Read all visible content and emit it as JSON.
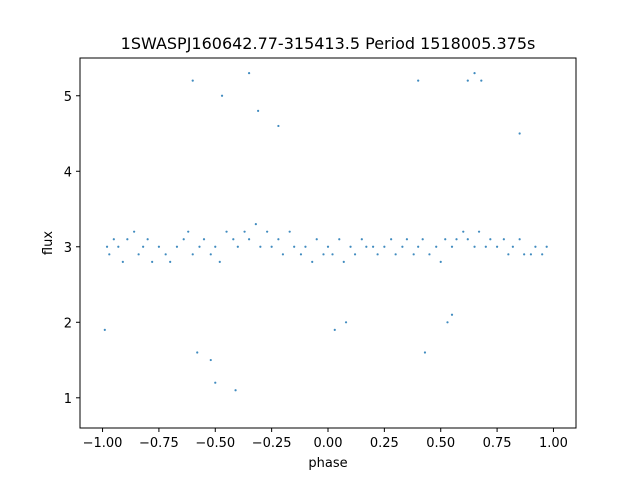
{
  "chart_data": {
    "type": "scatter",
    "title": "1SWASPJ160642.77-315413.5 Period 1518005.375s",
    "xlabel": "phase",
    "ylabel": "flux",
    "xlim": [
      -1.1,
      1.1
    ],
    "ylim": [
      0.6,
      5.5
    ],
    "x_ticks": [
      -1.0,
      -0.75,
      -0.5,
      -0.25,
      0.0,
      0.25,
      0.5,
      0.75,
      1.0
    ],
    "x_tick_labels": [
      "−1.00",
      "−0.75",
      "−0.50",
      "−0.25",
      "0.00",
      "0.25",
      "0.50",
      "0.75",
      "1.00"
    ],
    "y_ticks": [
      1,
      2,
      3,
      4,
      5
    ],
    "y_tick_labels": [
      "1",
      "2",
      "3",
      "4",
      "5"
    ],
    "grid": false,
    "marker_color": "#1f77b4",
    "series": [
      {
        "x": [
          -0.98,
          -0.97,
          -0.95,
          -0.93,
          -0.91,
          -0.89,
          -0.86,
          -0.84,
          -0.82,
          -0.8,
          -0.78,
          -0.75,
          -0.72,
          -0.7,
          -0.67,
          -0.64,
          -0.62,
          -0.6,
          -0.57,
          -0.55,
          -0.52,
          -0.5,
          -0.48,
          -0.45,
          -0.42,
          -0.4,
          -0.37,
          -0.35,
          -0.32,
          -0.3,
          -0.27,
          -0.25,
          -0.22,
          -0.2,
          -0.17,
          -0.15,
          -0.12,
          -0.1,
          -0.07,
          -0.05,
          -0.02,
          0.0,
          0.02,
          0.05,
          0.07,
          0.1,
          0.12,
          0.15,
          0.17,
          0.2,
          0.22,
          0.25,
          0.28,
          0.3,
          0.33,
          0.35,
          0.38,
          0.4,
          0.42,
          0.45,
          0.48,
          0.5,
          0.52,
          0.55,
          0.57,
          0.6,
          0.62,
          0.65,
          0.67,
          0.7,
          0.72,
          0.75,
          0.78,
          0.8,
          0.82,
          0.85,
          0.87,
          0.9,
          0.92,
          0.95,
          0.97,
          -0.99,
          -0.6,
          -0.47,
          -0.35,
          -0.31,
          -0.22,
          0.4,
          0.53,
          0.62,
          0.65,
          0.68,
          0.85,
          -0.58,
          0.43,
          -0.52,
          -0.5,
          0.03,
          0.55,
          -0.41,
          0.08
        ],
        "y": [
          3.0,
          2.9,
          3.1,
          3.0,
          2.8,
          3.1,
          3.2,
          2.9,
          3.0,
          3.1,
          2.8,
          3.0,
          2.9,
          2.8,
          3.0,
          3.1,
          3.2,
          2.9,
          3.0,
          3.1,
          2.9,
          3.0,
          2.8,
          3.2,
          3.1,
          3.0,
          3.2,
          3.1,
          3.3,
          3.0,
          3.2,
          3.0,
          3.1,
          2.9,
          3.2,
          3.0,
          2.9,
          3.0,
          2.8,
          3.1,
          2.9,
          3.0,
          2.9,
          3.1,
          2.8,
          3.0,
          2.9,
          3.1,
          3.0,
          3.0,
          2.9,
          3.0,
          3.1,
          2.9,
          3.0,
          3.1,
          2.9,
          3.0,
          3.1,
          2.9,
          3.0,
          2.8,
          3.1,
          3.0,
          3.1,
          3.2,
          3.1,
          3.0,
          3.2,
          3.0,
          3.1,
          3.0,
          3.1,
          2.9,
          3.0,
          3.1,
          2.9,
          2.9,
          3.0,
          2.9,
          3.0,
          1.9,
          5.2,
          5.0,
          5.3,
          4.8,
          4.6,
          5.2,
          2.0,
          5.2,
          5.3,
          5.2,
          4.5,
          1.6,
          1.6,
          1.5,
          1.2,
          1.9,
          2.1,
          1.1,
          2.0
        ]
      }
    ]
  }
}
